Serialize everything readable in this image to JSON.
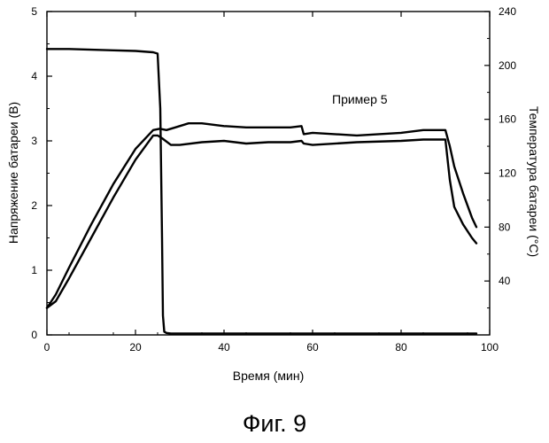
{
  "chart_data": {
    "type": "line",
    "title": "",
    "annotation": "Пример 5",
    "caption": "Фиг. 9",
    "xlabel": "Время (мин)",
    "ylabel_left": "Напряжение батареи (В)",
    "ylabel_right": "Температура батареи (°C)",
    "xlim": [
      0,
      100
    ],
    "ylim_left": [
      0,
      5
    ],
    "ylim_right": [
      0,
      240
    ],
    "x_ticks": [
      "0",
      "20",
      "40",
      "60",
      "80",
      "100"
    ],
    "y_left_ticks": [
      "0",
      "1",
      "2",
      "3",
      "4",
      "5"
    ],
    "y_right_ticks": [
      "40",
      "80",
      "120",
      "160",
      "200",
      "240"
    ],
    "grid": false,
    "legend": "none",
    "series": [
      {
        "axis": "left",
        "x": [
          0,
          5,
          10,
          15,
          20,
          24,
          25,
          25.6,
          26,
          26.2,
          26.5,
          27,
          28,
          30,
          50,
          70,
          80,
          90,
          95,
          97
        ],
        "y": [
          4.42,
          4.42,
          4.41,
          4.4,
          4.39,
          4.37,
          4.35,
          3.5,
          1.5,
          0.3,
          0.05,
          0.03,
          0.02,
          0.02,
          0.02,
          0.02,
          0.02,
          0.02,
          0.02,
          0.02
        ]
      },
      {
        "axis": "right",
        "x": [
          0,
          2,
          5,
          10,
          15,
          20,
          24,
          25,
          26,
          28,
          30,
          35,
          40,
          45,
          50,
          55,
          57.5,
          58,
          60,
          70,
          80,
          85,
          90,
          91,
          92,
          94,
          96,
          97
        ],
        "y": [
          20,
          25,
          42,
          72,
          102,
          130,
          148,
          148,
          146,
          141,
          141,
          143,
          144,
          142,
          143,
          143,
          144,
          142,
          141,
          143,
          144,
          145,
          145,
          115,
          95,
          82,
          72,
          68
        ]
      },
      {
        "axis": "right",
        "x": [
          0,
          2,
          5,
          10,
          15,
          20,
          24,
          25.5,
          27,
          29,
          32,
          35,
          40,
          45,
          50,
          55,
          57.5,
          58,
          60,
          70,
          80,
          85,
          89,
          90,
          91,
          92,
          94,
          96,
          97
        ],
        "y": [
          20,
          30,
          50,
          82,
          112,
          138,
          152,
          153,
          152,
          154,
          157,
          157,
          155,
          154,
          154,
          154,
          155,
          149,
          150,
          148,
          150,
          152,
          152,
          152,
          140,
          125,
          105,
          87,
          80
        ]
      }
    ]
  }
}
